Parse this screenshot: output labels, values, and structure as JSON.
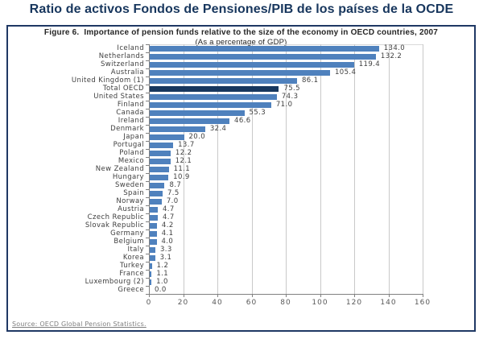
{
  "page": {
    "title": "Ratio de activos Fondos de Pensiones/PIB de los países de la OCDE"
  },
  "figure": {
    "caption_line1": "Figure 6.  Importance of pension funds relative to the size of the economy in OECD countries, 2007",
    "caption_line2": "(As a percentage of GDP)",
    "source": "Source: OECD Global Pension Statistics."
  },
  "chart_data": {
    "type": "bar",
    "orientation": "horizontal",
    "title": "Figure 6. Importance of pension funds relative to the size of the economy in OECD countries, 2007",
    "subtitle": "(As a percentage of GDP)",
    "xlabel": "",
    "ylabel": "",
    "xlim": [
      0,
      160
    ],
    "xticks": [
      0,
      20,
      40,
      60,
      80,
      100,
      120,
      140,
      160
    ],
    "grid": true,
    "legend": "none",
    "value_labels": true,
    "categories": [
      "Iceland",
      "Netherlands",
      "Switzerland",
      "Australia",
      "United Kingdom (1)",
      "Total OECD",
      "United States",
      "Finland",
      "Canada",
      "Ireland",
      "Denmark",
      "Japan",
      "Portugal",
      "Poland",
      "Mexico",
      "New Zealand",
      "Hungary",
      "Sweden",
      "Spain",
      "Norway",
      "Austria",
      "Czech Republic",
      "Slovak Republic",
      "Germany",
      "Belgium",
      "Italy",
      "Korea",
      "Turkey",
      "France",
      "Luxembourg (2)",
      "Greece"
    ],
    "values": [
      134.0,
      132.2,
      119.4,
      105.4,
      86.1,
      75.5,
      74.3,
      71.0,
      55.3,
      46.6,
      32.4,
      20.0,
      13.7,
      12.2,
      12.1,
      11.1,
      10.9,
      8.7,
      7.5,
      7.0,
      4.7,
      4.7,
      4.2,
      4.1,
      4.0,
      3.3,
      3.1,
      1.2,
      1.1,
      1.0,
      0.0
    ],
    "highlight_category": "Total OECD",
    "colors": {
      "bar": "#4f81bd",
      "highlight_bar": "#17375e",
      "gridline": "#c9c9c9",
      "axis": "#808080",
      "label_text": "#404040",
      "tick_text": "#595959",
      "title_text": "#17365d",
      "box_border": "#1f3864",
      "source_text": "#7f7f7f"
    },
    "source": "Source: OECD Global Pension Statistics."
  }
}
